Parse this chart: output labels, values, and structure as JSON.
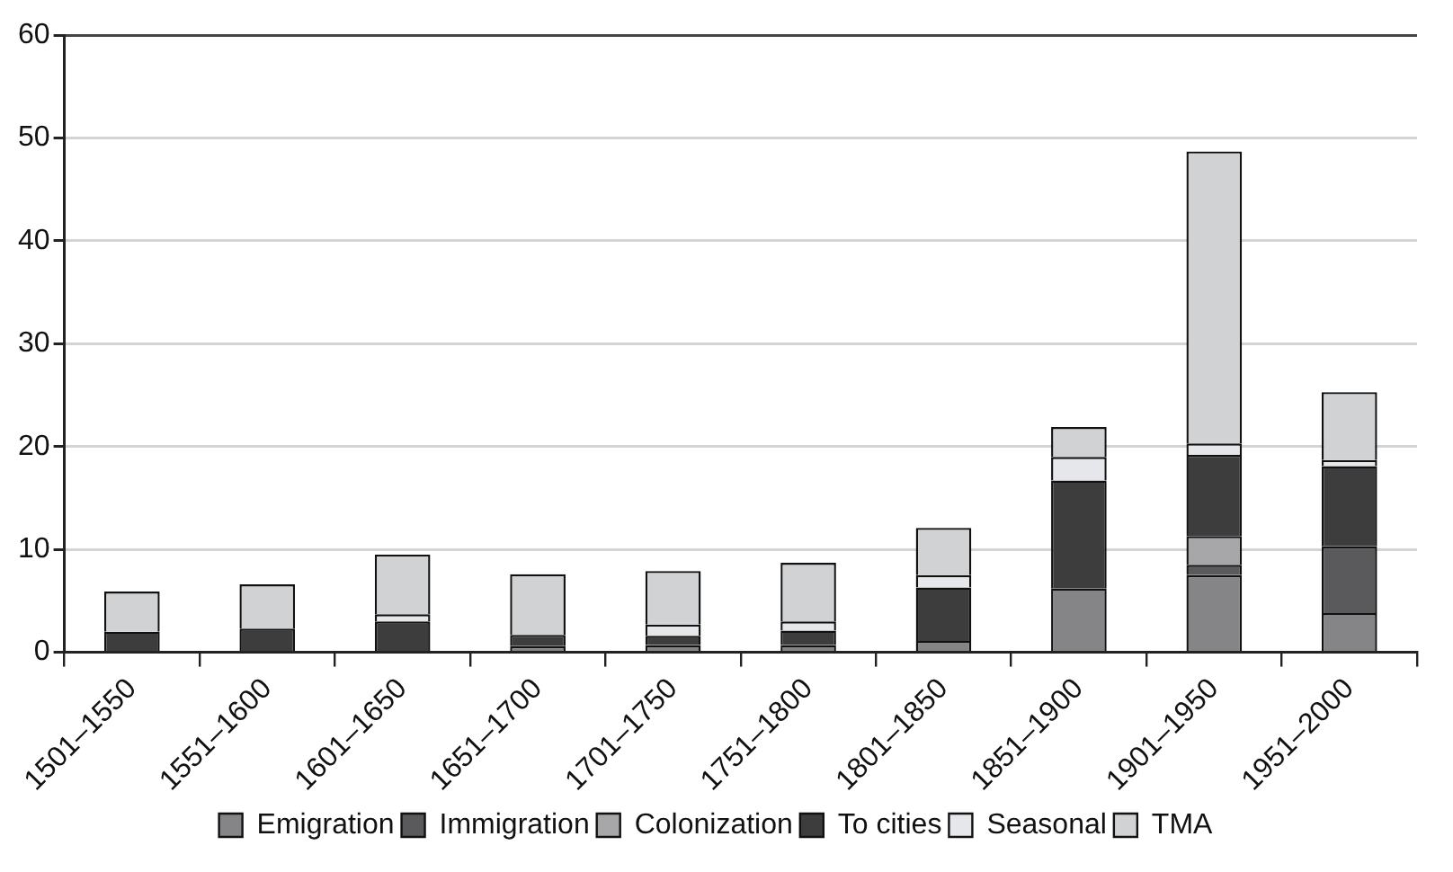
{
  "chart_data": {
    "type": "bar",
    "stacked": true,
    "categories": [
      "1501–1550",
      "1551–1600",
      "1601–1650",
      "1651–1700",
      "1701–1750",
      "1751–1800",
      "1801–1850",
      "1851–1900",
      "1901–1950",
      "1951–2000"
    ],
    "series": [
      {
        "name": "Emigration",
        "color": "#858587",
        "values": [
          0,
          0,
          0,
          0.6,
          0.7,
          0.7,
          1.1,
          6.2,
          7.5,
          3.8
        ]
      },
      {
        "name": "Immigration",
        "color": "#5a5a5c",
        "values": [
          0,
          0,
          0,
          0,
          0,
          0,
          0,
          0,
          1.0,
          6.5
        ]
      },
      {
        "name": "Colonization",
        "color": "#a7a7a9",
        "values": [
          0,
          0,
          0,
          0,
          0,
          0,
          0,
          0,
          2.8,
          0
        ]
      },
      {
        "name": "To cities",
        "color": "#3d3d3d",
        "values": [
          2.0,
          2.3,
          3.0,
          1.1,
          0.9,
          1.4,
          5.2,
          10.5,
          7.9,
          7.8
        ]
      },
      {
        "name": "Seasonal",
        "color": "#e6e7ea",
        "values": [
          0,
          0,
          0.7,
          null,
          1.1,
          0.9,
          1.2,
          2.3,
          1.1,
          0.6
        ]
      },
      {
        "name": "TMA",
        "color": "#d1d2d4",
        "values": [
          3.9,
          4.3,
          5.8,
          5.9,
          5.2,
          5.7,
          4.6,
          2.9,
          28.4,
          6.6
        ]
      }
    ],
    "ylim": [
      0,
      60
    ],
    "yticks": [
      0,
      10,
      20,
      30,
      40,
      50,
      60
    ],
    "grid": "y",
    "legend": "bottom"
  }
}
